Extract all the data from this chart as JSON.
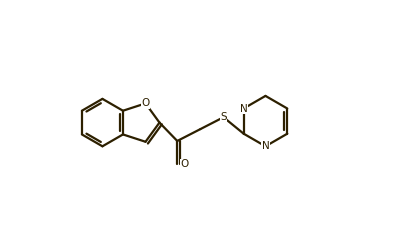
{
  "bg_color": "#ffffff",
  "line_color": "#2d2000",
  "line_width": 1.6,
  "figsize": [
    4.11,
    2.31
  ],
  "dpi": 100,
  "xlim": [
    0,
    10
  ],
  "ylim": [
    0,
    6
  ]
}
